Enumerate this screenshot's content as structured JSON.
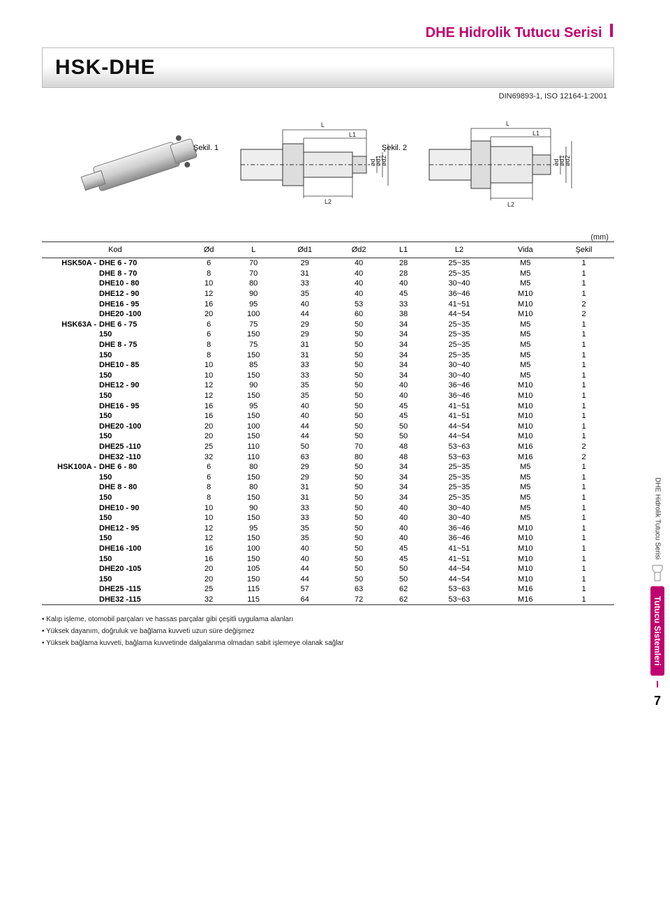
{
  "header": {
    "series_title": "DHE Hidrolik Tutucu Serisi",
    "bar_letter": "I",
    "product_title": "HSK-DHE",
    "standard": "DIN69893-1, ISO 12164-1:2001"
  },
  "diagrams": {
    "fig1_label": "Şekil. 1",
    "fig2_label": "Şekil. 2",
    "labels": {
      "L": "L",
      "L1": "L1",
      "L2": "L2",
      "od": "ød",
      "od1": "ød1",
      "od2": "ød2"
    }
  },
  "unit_label": "(mm)",
  "table": {
    "headers": [
      "Kod",
      "Ød",
      "L",
      "Ød1",
      "Ød2",
      "L1",
      "L2",
      "Vida",
      "Şekil"
    ],
    "rows": [
      {
        "prefix": "HSK50A -",
        "code": "DHE 6 - 70",
        "d": 6,
        "L": 70,
        "d1": 29,
        "d2": 40,
        "L1": 28,
        "L2": "25~35",
        "vida": "M5",
        "sekil": 1
      },
      {
        "prefix": "",
        "code": "DHE 8 - 70",
        "d": 8,
        "L": 70,
        "d1": 31,
        "d2": 40,
        "L1": 28,
        "L2": "25~35",
        "vida": "M5",
        "sekil": 1
      },
      {
        "prefix": "",
        "code": "DHE10 - 80",
        "d": 10,
        "L": 80,
        "d1": 33,
        "d2": 40,
        "L1": 40,
        "L2": "30~40",
        "vida": "M5",
        "sekil": 1
      },
      {
        "prefix": "",
        "code": "DHE12 - 90",
        "d": 12,
        "L": 90,
        "d1": 35,
        "d2": 40,
        "L1": 45,
        "L2": "36~46",
        "vida": "M10",
        "sekil": 1
      },
      {
        "prefix": "",
        "code": "DHE16 - 95",
        "d": 16,
        "L": 95,
        "d1": 40,
        "d2": 53,
        "L1": 33,
        "L2": "41~51",
        "vida": "M10",
        "sekil": 2
      },
      {
        "prefix": "",
        "code": "DHE20 -100",
        "d": 20,
        "L": 100,
        "d1": 44,
        "d2": 60,
        "L1": 38,
        "L2": "44~54",
        "vida": "M10",
        "sekil": 2
      },
      {
        "prefix": "HSK63A -",
        "code": "DHE 6 - 75",
        "d": 6,
        "L": 75,
        "d1": 29,
        "d2": 50,
        "L1": 34,
        "L2": "25~35",
        "vida": "M5",
        "sekil": 1
      },
      {
        "prefix": "",
        "code": "150",
        "d": 6,
        "L": 150,
        "d1": 29,
        "d2": 50,
        "L1": 34,
        "L2": "25~35",
        "vida": "M5",
        "sekil": 1
      },
      {
        "prefix": "",
        "code": "DHE 8 - 75",
        "d": 8,
        "L": 75,
        "d1": 31,
        "d2": 50,
        "L1": 34,
        "L2": "25~35",
        "vida": "M5",
        "sekil": 1
      },
      {
        "prefix": "",
        "code": "150",
        "d": 8,
        "L": 150,
        "d1": 31,
        "d2": 50,
        "L1": 34,
        "L2": "25~35",
        "vida": "M5",
        "sekil": 1
      },
      {
        "prefix": "",
        "code": "DHE10 - 85",
        "d": 10,
        "L": 85,
        "d1": 33,
        "d2": 50,
        "L1": 34,
        "L2": "30~40",
        "vida": "M5",
        "sekil": 1
      },
      {
        "prefix": "",
        "code": "150",
        "d": 10,
        "L": 150,
        "d1": 33,
        "d2": 50,
        "L1": 34,
        "L2": "30~40",
        "vida": "M5",
        "sekil": 1
      },
      {
        "prefix": "",
        "code": "DHE12 - 90",
        "d": 12,
        "L": 90,
        "d1": 35,
        "d2": 50,
        "L1": 40,
        "L2": "36~46",
        "vida": "M10",
        "sekil": 1
      },
      {
        "prefix": "",
        "code": "150",
        "d": 12,
        "L": 150,
        "d1": 35,
        "d2": 50,
        "L1": 40,
        "L2": "36~46",
        "vida": "M10",
        "sekil": 1
      },
      {
        "prefix": "",
        "code": "DHE16 - 95",
        "d": 16,
        "L": 95,
        "d1": 40,
        "d2": 50,
        "L1": 45,
        "L2": "41~51",
        "vida": "M10",
        "sekil": 1
      },
      {
        "prefix": "",
        "code": "150",
        "d": 16,
        "L": 150,
        "d1": 40,
        "d2": 50,
        "L1": 45,
        "L2": "41~51",
        "vida": "M10",
        "sekil": 1
      },
      {
        "prefix": "",
        "code": "DHE20 -100",
        "d": 20,
        "L": 100,
        "d1": 44,
        "d2": 50,
        "L1": 50,
        "L2": "44~54",
        "vida": "M10",
        "sekil": 1
      },
      {
        "prefix": "",
        "code": "150",
        "d": 20,
        "L": 150,
        "d1": 44,
        "d2": 50,
        "L1": 50,
        "L2": "44~54",
        "vida": "M10",
        "sekil": 1
      },
      {
        "prefix": "",
        "code": "DHE25 -110",
        "d": 25,
        "L": 110,
        "d1": 50,
        "d2": 70,
        "L1": 48,
        "L2": "53~63",
        "vida": "M16",
        "sekil": 2
      },
      {
        "prefix": "",
        "code": "DHE32 -110",
        "d": 32,
        "L": 110,
        "d1": 63,
        "d2": 80,
        "L1": 48,
        "L2": "53~63",
        "vida": "M16",
        "sekil": 2
      },
      {
        "prefix": "HSK100A -",
        "code": "DHE 6 - 80",
        "d": 6,
        "L": 80,
        "d1": 29,
        "d2": 50,
        "L1": 34,
        "L2": "25~35",
        "vida": "M5",
        "sekil": 1
      },
      {
        "prefix": "",
        "code": "150",
        "d": 6,
        "L": 150,
        "d1": 29,
        "d2": 50,
        "L1": 34,
        "L2": "25~35",
        "vida": "M5",
        "sekil": 1
      },
      {
        "prefix": "",
        "code": "DHE 8 - 80",
        "d": 8,
        "L": 80,
        "d1": 31,
        "d2": 50,
        "L1": 34,
        "L2": "25~35",
        "vida": "M5",
        "sekil": 1
      },
      {
        "prefix": "",
        "code": "150",
        "d": 8,
        "L": 150,
        "d1": 31,
        "d2": 50,
        "L1": 34,
        "L2": "25~35",
        "vida": "M5",
        "sekil": 1
      },
      {
        "prefix": "",
        "code": "DHE10 - 90",
        "d": 10,
        "L": 90,
        "d1": 33,
        "d2": 50,
        "L1": 40,
        "L2": "30~40",
        "vida": "M5",
        "sekil": 1
      },
      {
        "prefix": "",
        "code": "150",
        "d": 10,
        "L": 150,
        "d1": 33,
        "d2": 50,
        "L1": 40,
        "L2": "30~40",
        "vida": "M5",
        "sekil": 1
      },
      {
        "prefix": "",
        "code": "DHE12 - 95",
        "d": 12,
        "L": 95,
        "d1": 35,
        "d2": 50,
        "L1": 40,
        "L2": "36~46",
        "vida": "M10",
        "sekil": 1
      },
      {
        "prefix": "",
        "code": "150",
        "d": 12,
        "L": 150,
        "d1": 35,
        "d2": 50,
        "L1": 40,
        "L2": "36~46",
        "vida": "M10",
        "sekil": 1
      },
      {
        "prefix": "",
        "code": "DHE16 -100",
        "d": 16,
        "L": 100,
        "d1": 40,
        "d2": 50,
        "L1": 45,
        "L2": "41~51",
        "vida": "M10",
        "sekil": 1
      },
      {
        "prefix": "",
        "code": "150",
        "d": 16,
        "L": 150,
        "d1": 40,
        "d2": 50,
        "L1": 45,
        "L2": "41~51",
        "vida": "M10",
        "sekil": 1
      },
      {
        "prefix": "",
        "code": "DHE20 -105",
        "d": 20,
        "L": 105,
        "d1": 44,
        "d2": 50,
        "L1": 50,
        "L2": "44~54",
        "vida": "M10",
        "sekil": 1
      },
      {
        "prefix": "",
        "code": "150",
        "d": 20,
        "L": 150,
        "d1": 44,
        "d2": 50,
        "L1": 50,
        "L2": "44~54",
        "vida": "M10",
        "sekil": 1
      },
      {
        "prefix": "",
        "code": "DHE25 -115",
        "d": 25,
        "L": 115,
        "d1": 57,
        "d2": 63,
        "L1": 62,
        "L2": "53~63",
        "vida": "M16",
        "sekil": 1
      },
      {
        "prefix": "",
        "code": "DHE32 -115",
        "d": 32,
        "L": 115,
        "d1": 64,
        "d2": 72,
        "L1": 62,
        "L2": "53~63",
        "vida": "M16",
        "sekil": 1
      }
    ]
  },
  "notes": [
    "• Kalıp işleme, otomobil parçaları ve hassas parçalar gibi çeşitli uygulama alanları",
    "• Yüksek dayanım, doğruluk ve bağlama kuvveti uzun süre değişmez",
    "• Yüksek bağlama kuvveti, bağlama kuvvetinde dalgalanma olmadan sabit işlemeye olanak sağlar"
  ],
  "side": {
    "label1": "DHE Hidrolik Tutucu Serisi",
    "pill_text": "Tutucu Sistemleri",
    "letter": "I",
    "page_number": "7"
  }
}
